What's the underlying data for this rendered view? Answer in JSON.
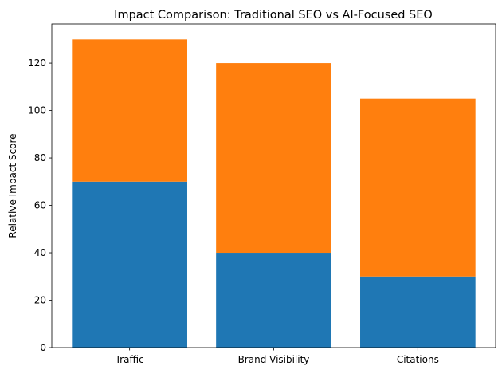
{
  "chart_data": {
    "type": "bar",
    "stacked": true,
    "title": "Impact Comparison: Traditional SEO vs AI-Focused SEO",
    "xlabel": "",
    "ylabel": "Relative Impact Score",
    "categories": [
      "Traffic",
      "Brand Visibility",
      "Citations"
    ],
    "series": [
      {
        "values": [
          70,
          40,
          30
        ],
        "color": "#1f77b4"
      },
      {
        "values": [
          60,
          80,
          75
        ],
        "color": "#ff7f0e"
      }
    ],
    "ylim": [
      0,
      136.5
    ],
    "yticks": [
      0,
      20,
      40,
      60,
      80,
      100,
      120
    ],
    "grid": false,
    "legend": "none"
  }
}
